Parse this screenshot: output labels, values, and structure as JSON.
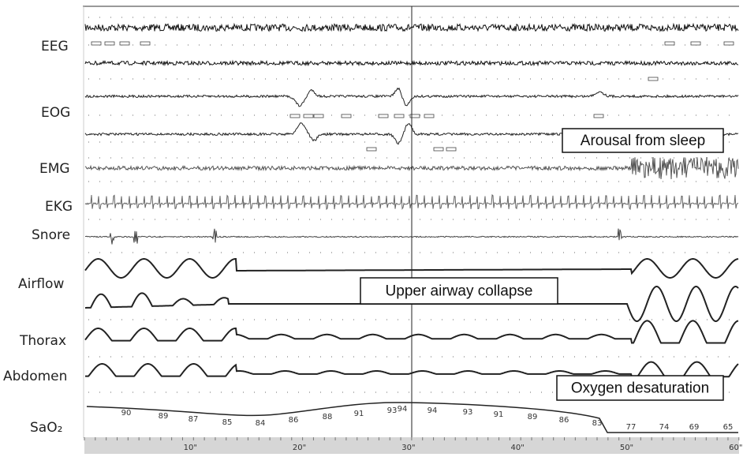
{
  "channels": [
    "EEG",
    "EOG",
    "EMG",
    "EKG",
    "Snore",
    "Airflow",
    "Thorax",
    "Abdomen",
    "SaO₂"
  ],
  "annotations": [
    "Arousal from sleep",
    "Upper airway collapse",
    "Oxygen desaturation"
  ],
  "sao2_readings": [
    90,
    89,
    87,
    85,
    84,
    86,
    88,
    91,
    93,
    94,
    94,
    93,
    91,
    89,
    86,
    83,
    77,
    74,
    69,
    65
  ],
  "time_labels": [
    "10\"",
    "20\"",
    "30\"",
    "40\"",
    "50\"",
    "60\""
  ]
}
